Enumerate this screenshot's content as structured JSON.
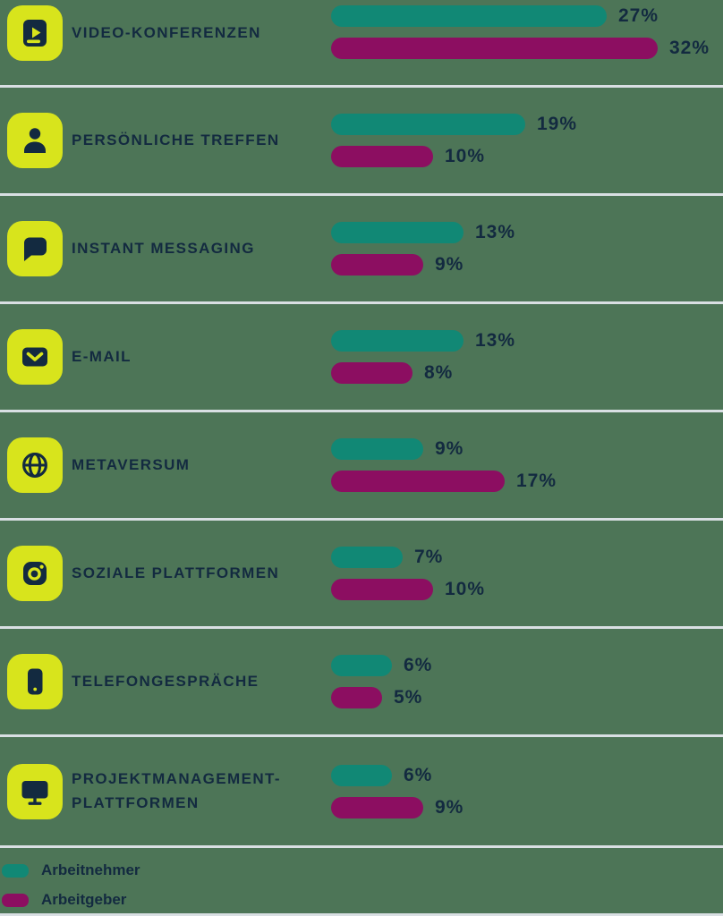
{
  "chart_data": {
    "type": "bar",
    "orientation": "horizontal",
    "title": "",
    "unit": "%",
    "value_labels": true,
    "grid": false,
    "legend_position": "bottom-left",
    "categories": [
      "VIDEO-KONFERENZEN",
      "PERSÖNLICHE TREFFEN",
      "INSTANT MESSAGING",
      "E-MAIL",
      "METAVERSUM",
      "SOZIALE PLATTFORMEN",
      "TELEFONGESPRÄCHE",
      "PROJEKTMANAGEMENT-PLATTFORMEN"
    ],
    "series": [
      {
        "name": "Arbeitnehmer",
        "color": "#118875",
        "values": [
          27,
          19,
          13,
          13,
          9,
          7,
          6,
          6
        ]
      },
      {
        "name": "Arbeitgeber",
        "color": "#8C0E61",
        "values": [
          32,
          10,
          9,
          8,
          17,
          10,
          5,
          9
        ]
      }
    ]
  },
  "rows": [
    {
      "label": "VIDEO-KONFERENZEN",
      "icon": "video-book-icon",
      "bars": [
        {
          "series": "Arbeitnehmer",
          "value": 27,
          "label": "27%"
        },
        {
          "series": "Arbeitgeber",
          "value": 32,
          "label": "32%"
        }
      ]
    },
    {
      "label": "PERSÖNLICHE TREFFEN",
      "icon": "person-icon",
      "bars": [
        {
          "series": "Arbeitnehmer",
          "value": 19,
          "label": "19%"
        },
        {
          "series": "Arbeitgeber",
          "value": 10,
          "label": "10%"
        }
      ]
    },
    {
      "label": "INSTANT MESSAGING",
      "icon": "chat-bubble-icon",
      "bars": [
        {
          "series": "Arbeitnehmer",
          "value": 13,
          "label": "13%"
        },
        {
          "series": "Arbeitgeber",
          "value": 9,
          "label": "9%"
        }
      ]
    },
    {
      "label": "E-MAIL",
      "icon": "envelope-icon",
      "bars": [
        {
          "series": "Arbeitnehmer",
          "value": 13,
          "label": "13%"
        },
        {
          "series": "Arbeitgeber",
          "value": 8,
          "label": "8%"
        }
      ]
    },
    {
      "label": "METAVERSUM",
      "icon": "globe-icon",
      "bars": [
        {
          "series": "Arbeitnehmer",
          "value": 9,
          "label": "9%"
        },
        {
          "series": "Arbeitgeber",
          "value": 17,
          "label": "17%"
        }
      ]
    },
    {
      "label": "SOZIALE PLATTFORMEN",
      "icon": "social-camera-icon",
      "bars": [
        {
          "series": "Arbeitnehmer",
          "value": 7,
          "label": "7%"
        },
        {
          "series": "Arbeitgeber",
          "value": 10,
          "label": "10%"
        }
      ]
    },
    {
      "label": "TELEFONGESPRÄCHE",
      "icon": "smartphone-icon",
      "bars": [
        {
          "series": "Arbeitnehmer",
          "value": 6,
          "label": "6%"
        },
        {
          "series": "Arbeitgeber",
          "value": 5,
          "label": "5%"
        }
      ]
    },
    {
      "label": "PROJEKTMANAGEMENT-PLATTFORMEN",
      "icon": "monitor-icon",
      "bars": [
        {
          "series": "Arbeitnehmer",
          "value": 6,
          "label": "6%"
        },
        {
          "series": "Arbeitgeber",
          "value": 9,
          "label": "9%"
        }
      ]
    }
  ],
  "legend": {
    "items": [
      {
        "label": "Arbeitnehmer",
        "color": "#118875"
      },
      {
        "label": "Arbeitgeber",
        "color": "#8C0E61"
      }
    ]
  },
  "colors": {
    "background": "#4D7557",
    "bar_arbeitnehmer": "#118875",
    "bar_arbeitgeber": "#8C0E61",
    "icon_tile": "#D8E41C",
    "icon_glyph": "#132A40",
    "text": "#132A40",
    "separator": "#D9DFE3"
  }
}
